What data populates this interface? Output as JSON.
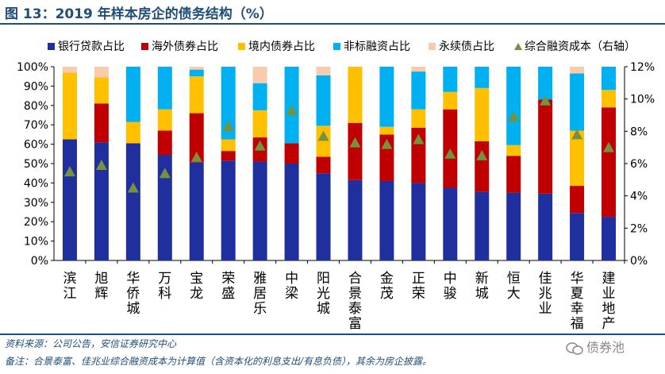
{
  "header": {
    "title": "图 13：2019 年样本房企的债务结构（%）"
  },
  "footer": {
    "source": "资料来源：公司公告，安信证券研究中心",
    "remark": "备注：合景泰富、佳兆业综合融资成本为计算值（含资本化的利息支出/有息负债），其余为房企披露。",
    "watermark": "债券池"
  },
  "colors": {
    "bank": "#1F2F9E",
    "overseas": "#C00000",
    "domestic": "#FFC000",
    "nonstandard": "#00B0F0",
    "perpetual": "#F8CBAD",
    "cost_marker": "#76923C",
    "axis": "#000000"
  },
  "chart_data": {
    "type": "bar",
    "stacked": true,
    "categories": [
      "滨江",
      "旭辉",
      "华侨城",
      "万科",
      "宝龙",
      "荣盛",
      "雅居乐",
      "中梁",
      "阳光城",
      "合景泰富",
      "金茂",
      "正荣",
      "中骏",
      "新城",
      "恒大",
      "佳兆业",
      "华夏幸福",
      "建业地产"
    ],
    "series": [
      {
        "name": "银行贷款占比",
        "color_key": "bank",
        "values": [
          62.5,
          61,
          60.5,
          54.5,
          50.5,
          51.5,
          51,
          50,
          45,
          41.5,
          41,
          40,
          37.5,
          35.5,
          35,
          34.5,
          24.5,
          22.5
        ]
      },
      {
        "name": "海外债券占比",
        "color_key": "overseas",
        "values": [
          0,
          20,
          0,
          12.5,
          25.5,
          5,
          12.5,
          10.5,
          8.5,
          29.5,
          24,
          28.5,
          40.5,
          26,
          19,
          48.5,
          14,
          56.5
        ]
      },
      {
        "name": "境内债券占比",
        "color_key": "domestic",
        "values": [
          34.5,
          13.5,
          11,
          11,
          19,
          6,
          14,
          0,
          16,
          29,
          4,
          9.5,
          9,
          27.5,
          5.5,
          0,
          28.5,
          9
        ]
      },
      {
        "name": "非标融资占比",
        "color_key": "nonstandard",
        "values": [
          0,
          0,
          28.5,
          22,
          3.5,
          37.5,
          14,
          39.5,
          26,
          0,
          31,
          19.5,
          13,
          11,
          40.5,
          17,
          29.5,
          12
        ]
      },
      {
        "name": "永续债占比",
        "color_key": "perpetual",
        "values": [
          3,
          5.5,
          0,
          0,
          1.5,
          0,
          8.5,
          0,
          4.5,
          0,
          0,
          2.5,
          0,
          0,
          0,
          0,
          3.5,
          0
        ]
      }
    ],
    "line_series": {
      "name": "综合融资成本（右轴）",
      "color_key": "cost_marker",
      "marker": "triangle",
      "axis": "right",
      "values": [
        5.5,
        5.9,
        4.5,
        5.4,
        6.4,
        8.3,
        7.1,
        9.3,
        7.7,
        7.3,
        7.2,
        7.5,
        6.6,
        6.5,
        8.9,
        9.9,
        7.8,
        7.0
      ]
    },
    "left_axis": {
      "ylim": [
        0,
        100
      ],
      "ticks": [
        "0%",
        "10%",
        "20%",
        "30%",
        "40%",
        "50%",
        "60%",
        "70%",
        "80%",
        "90%",
        "100%"
      ]
    },
    "right_axis": {
      "ylim": [
        0,
        12
      ],
      "ticks": [
        "0%",
        "2%",
        "4%",
        "6%",
        "8%",
        "10%",
        "12%"
      ]
    },
    "legend": {
      "position": "top"
    }
  }
}
